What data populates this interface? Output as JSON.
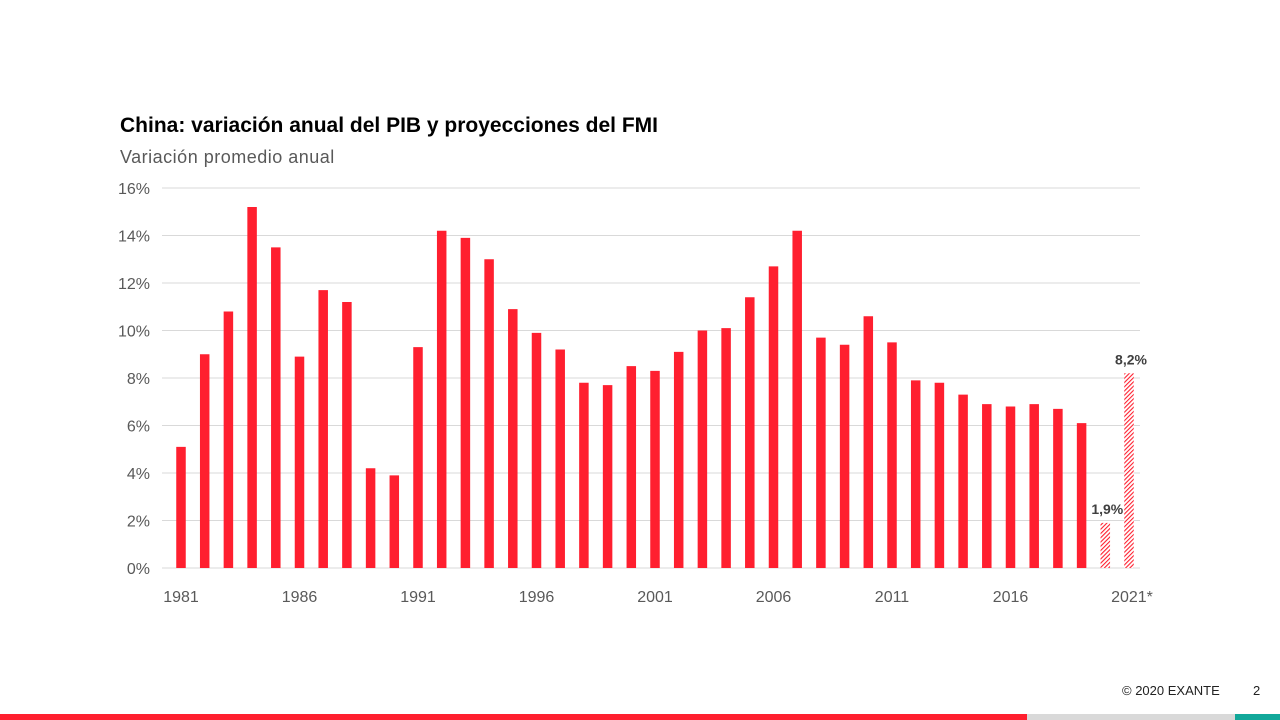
{
  "slide": {
    "title": "China: variación anual del PIB y proyecciones del FMI",
    "subtitle": "Variación promedio anual",
    "footer": "© 2020 EXANTE",
    "page_number": "2"
  },
  "colors": {
    "bar": "#ff1f2f",
    "grid": "#d9d9d9",
    "axis_text": "#595959",
    "label_text": "#404040",
    "footer_red": "#ff1f2f",
    "footer_grey": "#d9d9d9",
    "footer_teal": "#12a89a"
  },
  "chart_data": {
    "type": "bar",
    "title": "China: variación anual del PIB y proyecciones del FMI",
    "subtitle": "Variación promedio anual",
    "categories": [
      "1981",
      "1982",
      "1983",
      "1984",
      "1985",
      "1986",
      "1987",
      "1988",
      "1989",
      "1990",
      "1991",
      "1992",
      "1993",
      "1994",
      "1995",
      "1996",
      "1997",
      "1998",
      "1999",
      "2000",
      "2001",
      "2002",
      "2003",
      "2004",
      "2005",
      "2006",
      "2007",
      "2008",
      "2009",
      "2010",
      "2011",
      "2012",
      "2013",
      "2014",
      "2015",
      "2016",
      "2017",
      "2018",
      "2019",
      "2020*",
      "2021*"
    ],
    "values": [
      5.1,
      9.0,
      10.8,
      15.2,
      13.5,
      8.9,
      11.7,
      11.2,
      4.2,
      3.9,
      9.3,
      14.2,
      13.9,
      13.0,
      10.9,
      9.9,
      9.2,
      7.8,
      7.7,
      8.5,
      8.3,
      9.1,
      10.0,
      10.1,
      11.4,
      12.7,
      14.2,
      9.7,
      9.4,
      10.6,
      9.5,
      7.9,
      7.8,
      7.3,
      6.9,
      6.8,
      6.9,
      6.7,
      6.1,
      1.9,
      8.2
    ],
    "projection_from_index": 39,
    "x_tick_labels": [
      "1981",
      "1986",
      "1991",
      "1996",
      "2001",
      "2006",
      "2011",
      "2016",
      "2021*"
    ],
    "y_tick_labels": [
      "0%",
      "2%",
      "4%",
      "6%",
      "8%",
      "10%",
      "12%",
      "14%",
      "16%"
    ],
    "data_labels": [
      {
        "category": "2020*",
        "text": "1,9%"
      },
      {
        "category": "2021*",
        "text": "8,2%"
      }
    ],
    "ylim": [
      0,
      16
    ],
    "xlabel": "",
    "ylabel": "",
    "grid": true,
    "legend": "none"
  }
}
